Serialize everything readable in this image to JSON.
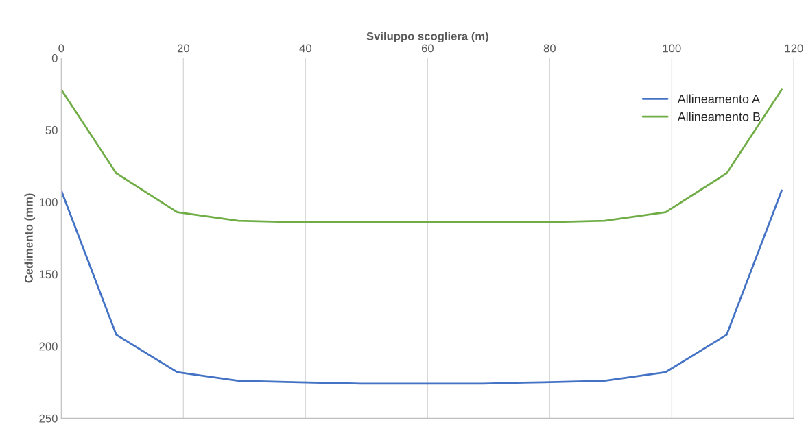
{
  "chart_data": {
    "type": "line",
    "xlabel": "Sviluppo scogliera (m)",
    "ylabel": "Cedimento (mm)",
    "x": [
      0,
      9,
      19,
      29,
      39,
      49,
      59,
      69,
      79,
      89,
      99,
      109,
      118
    ],
    "series": [
      {
        "name": "Allineamento A",
        "color": "#4472c4",
        "values": [
          92,
          192,
          218,
          224,
          225,
          226,
          226,
          226,
          225,
          224,
          218,
          192,
          92
        ]
      },
      {
        "name": "Allineamento B",
        "color": "#70ad47",
        "values": [
          22,
          80,
          107,
          113,
          114,
          114,
          114,
          114,
          114,
          113,
          107,
          80,
          22
        ]
      }
    ],
    "xlim": [
      0,
      120
    ],
    "xticks": [
      0,
      20,
      40,
      60,
      80,
      100,
      120
    ],
    "ylim": [
      250,
      0
    ],
    "yticks": [
      0,
      50,
      100,
      150,
      200,
      250
    ],
    "grid": "x",
    "legend": "top right",
    "marker": "none",
    "line_style": "solid"
  }
}
